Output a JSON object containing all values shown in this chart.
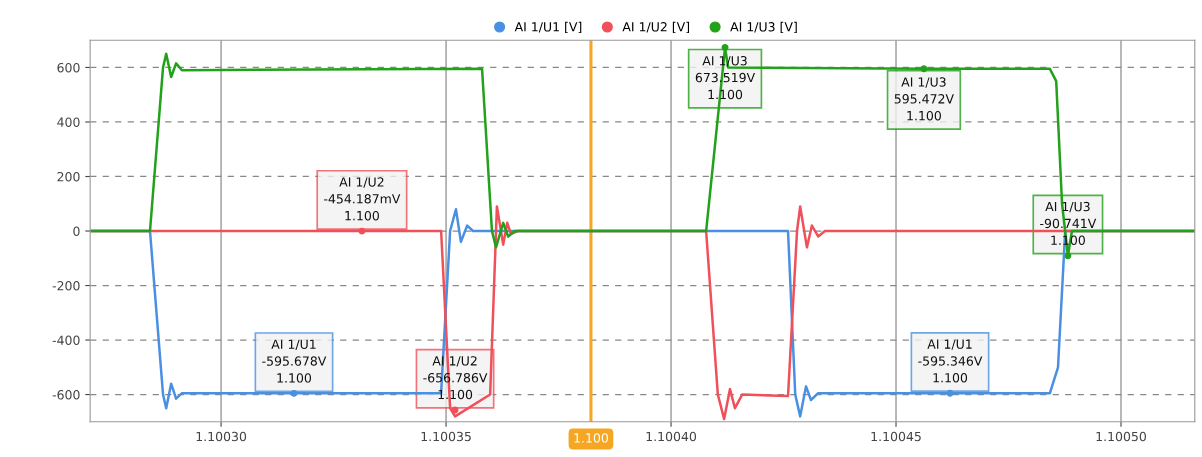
{
  "chart_data": {
    "type": "line",
    "xlim": [
      1.1002709,
      1.1005164
    ],
    "ylim": [
      -700,
      700
    ],
    "xticks": [
      {
        "value": 1.1003,
        "label": "1.10030"
      },
      {
        "value": 1.10035,
        "label": "1.10035"
      },
      {
        "value": 1.1004,
        "label": "1.10040"
      },
      {
        "value": 1.10045,
        "label": "1.10045"
      },
      {
        "value": 1.1005,
        "label": "1.10050"
      }
    ],
    "yticks": [
      -600,
      -400,
      -200,
      0,
      200,
      400,
      600
    ],
    "grid": true,
    "legend": "top",
    "series": [
      {
        "name": "AI 1/U1 [V]",
        "color": "#4a90e2",
        "x": [
          1.1002709,
          1.1002842,
          1.1002871,
          1.1002878,
          1.1002889,
          1.10029,
          1.1002913,
          1.1003489,
          1.1003509,
          1.1003522,
          1.1003533,
          1.1003547,
          1.100356,
          1.100426,
          1.1004276,
          1.1004287,
          1.10043,
          1.1004311,
          1.1004327,
          1.1004842,
          1.100486,
          1.1004876,
          1.1005164
        ],
        "values": [
          0,
          0,
          -600,
          -650,
          -560,
          -615,
          -595,
          -595,
          0,
          80,
          -40,
          20,
          0,
          0,
          -600,
          -680,
          -570,
          -620,
          -595,
          -595,
          -500,
          0,
          0
        ]
      },
      {
        "name": "AI 1/U2 [V]",
        "color": "#f0505a",
        "x": [
          1.1002709,
          1.1003313,
          1.1003489,
          1.1003509,
          1.100352,
          1.1003598,
          1.1003613,
          1.1003627,
          1.1003636,
          1.1003644,
          1.100366,
          1.1004078,
          1.1004104,
          1.1004118,
          1.1004131,
          1.1004142,
          1.1004158,
          1.100426,
          1.100428,
          1.1004287,
          1.1004302,
          1.1004313,
          1.1004327,
          1.1004342,
          1.1005164
        ],
        "values": [
          0,
          0,
          0,
          -650,
          -680,
          -600,
          90,
          -50,
          30,
          -10,
          0,
          0,
          -600,
          -690,
          -580,
          -650,
          -600,
          -605,
          0,
          90,
          -60,
          20,
          -20,
          0,
          0
        ]
      },
      {
        "name": "AI 1/U3 [V]",
        "color": "#22a11a",
        "x": [
          1.1002709,
          1.1002842,
          1.1002871,
          1.1002878,
          1.1002889,
          1.10029,
          1.1002913,
          1.100358,
          1.1003602,
          1.1003611,
          1.1003627,
          1.1003638,
          1.1003653,
          1.1004078,
          1.100412,
          1.1004127,
          1.1004562,
          1.1004842,
          1.1004856,
          1.1004869,
          1.1004882,
          1.1004891,
          1.1005164
        ],
        "values": [
          0,
          0,
          600,
          650,
          565,
          615,
          590,
          595,
          0,
          -60,
          30,
          -20,
          0,
          0,
          673,
          600,
          595,
          595,
          550,
          100,
          -91,
          0,
          0
        ]
      }
    ],
    "ref_lines": [
      {
        "axis": "x",
        "value": 1.1003822,
        "label": "1.100",
        "color": "#f5a623",
        "line_style": "solid"
      }
    ],
    "annotations": [
      {
        "text": "AI 1/U2\n-454.187mV\n1.100",
        "x": 1.1003313,
        "y": -0.454187
      },
      {
        "text": "AI 1/U1\n-595.678V\n1.100",
        "x": 1.1003162,
        "y": -595.678
      },
      {
        "text": "AI 1/U2\n-656.786V\n1.100",
        "x": 1.100352,
        "y": -656.786
      },
      {
        "text": "AI 1/U3\n673.519V\n1.100",
        "x": 1.100412,
        "y": 673.519
      },
      {
        "text": "AI 1/U3\n595.472V\n1.100",
        "x": 1.1004562,
        "y": 595.472
      },
      {
        "text": "AI 1/U3\n-90.741V\n1.100",
        "x": 1.1004882,
        "y": -90.741
      },
      {
        "text": "AI 1/U1\n-595.346V\n1.100",
        "x": 1.100462,
        "y": -595.346
      }
    ]
  }
}
